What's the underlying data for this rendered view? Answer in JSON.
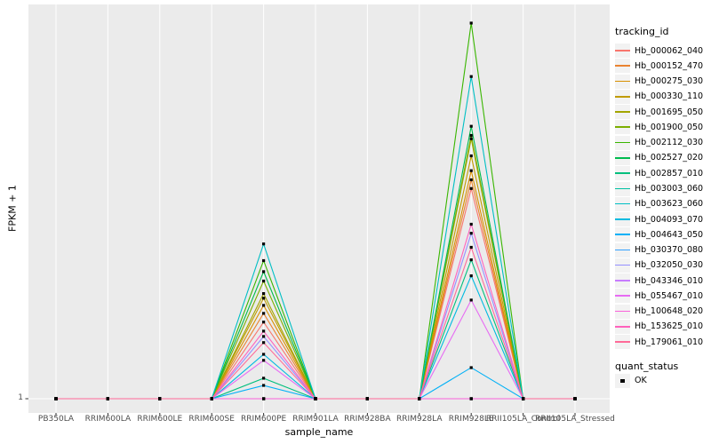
{
  "figure": {
    "xlabel": "sample_name",
    "ylabel": "FPKM + 1",
    "y_tick_label": "1"
  },
  "legend": {
    "tracking_title": "tracking_id",
    "quant_title": "quant_status",
    "quant_entries": [
      {
        "label": "OK",
        "marker": "black-square"
      }
    ]
  },
  "chart_data": {
    "type": "line",
    "title": "",
    "xlabel": "sample_name",
    "ylabel": "FPKM + 1",
    "categories": [
      "PB350LA",
      "RRIM600LA",
      "RRIM600LE",
      "RRIM600SE",
      "RRIM600PE",
      "RRIM901LA",
      "RRIM928BA",
      "RRIM928LA",
      "RRIM928LE",
      "RRII105LA_Control",
      "RRII105LA_Stressed"
    ],
    "y_axis": {
      "ticks_shown": [
        "1"
      ],
      "baseline_value": 1,
      "ylim": [
        1,
        105
      ]
    },
    "grid": true,
    "legend_position": "right",
    "panel_bg": "#EBEBEB",
    "grid_color": "#FFFFFF",
    "point_color": "#000000",
    "point_shape": "square",
    "quant_status": "OK",
    "series": [
      {
        "name": "Hb_000062_040",
        "color": "#F8766D",
        "values": [
          1,
          1,
          1,
          1,
          21.2,
          1,
          1,
          1,
          56.4,
          1,
          1
        ]
      },
      {
        "name": "Hb_000152_470",
        "color": "#EA8331",
        "values": [
          1,
          1,
          1,
          1,
          23.5,
          1,
          1,
          1,
          58.7,
          1,
          1
        ]
      },
      {
        "name": "Hb_000275_030",
        "color": "#D89000",
        "values": [
          1,
          1,
          1,
          1,
          25.6,
          1,
          1,
          1,
          61.1,
          1,
          1
        ]
      },
      {
        "name": "Hb_000330_110",
        "color": "#C09B00",
        "values": [
          1,
          1,
          1,
          1,
          27.5,
          1,
          1,
          1,
          65.0,
          1,
          1
        ]
      },
      {
        "name": "Hb_001695_050",
        "color": "#A3A500",
        "values": [
          1,
          1,
          1,
          1,
          28.7,
          1,
          1,
          1,
          69.5,
          1,
          1
        ]
      },
      {
        "name": "Hb_001900_050",
        "color": "#7CAE00",
        "values": [
          1,
          1,
          1,
          1,
          32.0,
          1,
          1,
          1,
          70.4,
          1,
          1
        ]
      },
      {
        "name": "Hb_002112_030",
        "color": "#39B600",
        "values": [
          1,
          1,
          1,
          1,
          37.4,
          1,
          1,
          1,
          100.0,
          1,
          1
        ]
      },
      {
        "name": "Hb_002527_020",
        "color": "#00BB4E",
        "values": [
          1,
          1,
          1,
          1,
          34.5,
          1,
          1,
          1,
          72.8,
          1,
          1
        ]
      },
      {
        "name": "Hb_002857_010",
        "color": "#00BF7D",
        "values": [
          1,
          1,
          1,
          1,
          6.4,
          1,
          1,
          1,
          37.6,
          1,
          1
        ]
      },
      {
        "name": "Hb_003003_060",
        "color": "#00C1A3",
        "values": [
          1,
          1,
          1,
          1,
          1,
          1,
          1,
          1,
          1,
          1,
          1
        ]
      },
      {
        "name": "Hb_003623_060",
        "color": "#00BFC4",
        "values": [
          1,
          1,
          1,
          1,
          41.8,
          1,
          1,
          1,
          85.9,
          1,
          1
        ]
      },
      {
        "name": "Hb_004093_070",
        "color": "#00BAE0",
        "values": [
          1,
          1,
          1,
          1,
          12.7,
          1,
          1,
          1,
          33.4,
          1,
          1
        ]
      },
      {
        "name": "Hb_004643_050",
        "color": "#00B0F6",
        "values": [
          1,
          1,
          1,
          1,
          4.5,
          1,
          1,
          1,
          9.2,
          1,
          1
        ]
      },
      {
        "name": "Hb_030370_080",
        "color": "#35A2FF",
        "values": [
          1,
          1,
          1,
          1,
          1,
          1,
          1,
          1,
          1,
          1,
          1
        ]
      },
      {
        "name": "Hb_032050_030",
        "color": "#9590FF",
        "values": [
          1,
          1,
          1,
          1,
          17.4,
          1,
          1,
          1,
          44.6,
          1,
          1
        ]
      },
      {
        "name": "Hb_043346_010",
        "color": "#C77CFF",
        "values": [
          1,
          1,
          1,
          1,
          1,
          1,
          1,
          1,
          1,
          1,
          1
        ]
      },
      {
        "name": "Hb_055467_010",
        "color": "#E76BF3",
        "values": [
          1,
          1,
          1,
          1,
          11.1,
          1,
          1,
          1,
          27.0,
          1,
          1
        ]
      },
      {
        "name": "Hb_100648_020",
        "color": "#FA62DB",
        "values": [
          1,
          1,
          1,
          1,
          1,
          1,
          1,
          1,
          1,
          1,
          1
        ]
      },
      {
        "name": "Hb_153625_010",
        "color": "#FF62BC",
        "values": [
          1,
          1,
          1,
          1,
          18.8,
          1,
          1,
          1,
          47.0,
          1,
          1
        ]
      },
      {
        "name": "Hb_179061_010",
        "color": "#FF6A98",
        "values": [
          1,
          1,
          1,
          1,
          15.8,
          1,
          1,
          1,
          40.9,
          1,
          1
        ]
      }
    ]
  }
}
